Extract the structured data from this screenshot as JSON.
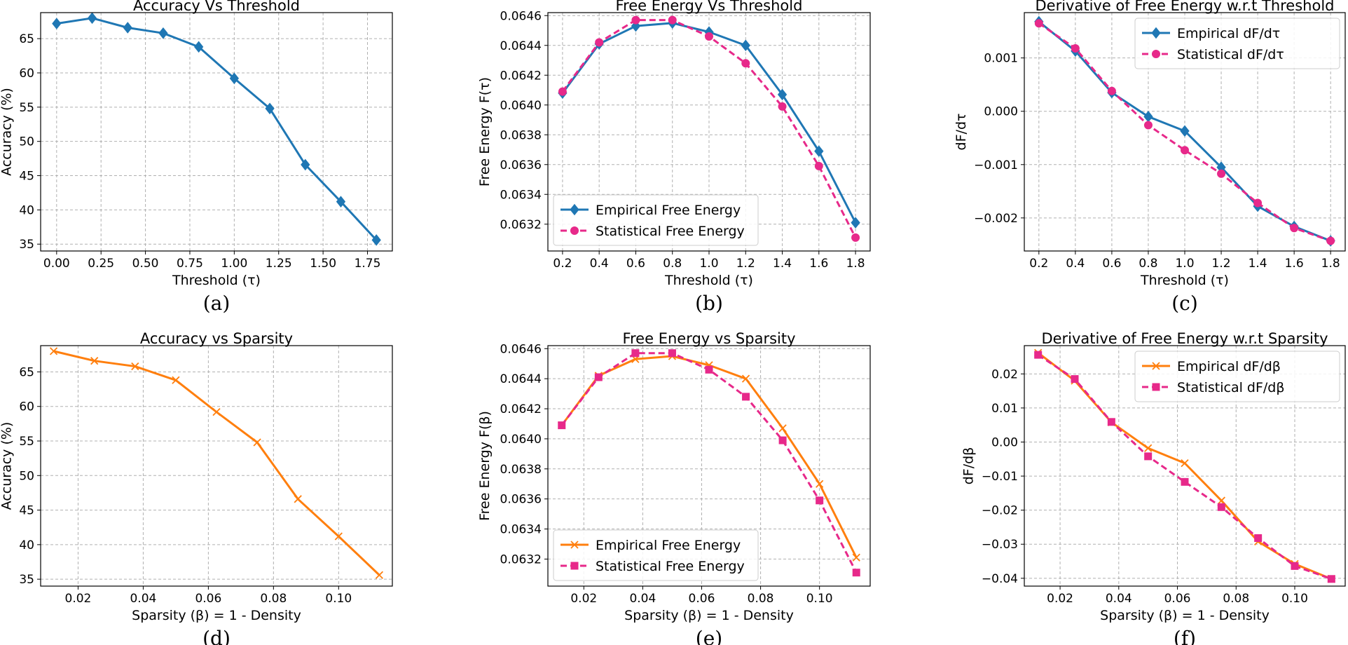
{
  "colors": {
    "blue": "#1f77b4",
    "pink": "#e7298a",
    "orange": "#ff7f0e"
  },
  "chart_data": [
    {
      "id": "a",
      "type": "line",
      "title": "Accuracy Vs Threshold",
      "xlabel": "Threshold (τ)",
      "ylabel": "Accuracy (%)",
      "caption": "(a)",
      "xlim": [
        -0.09,
        1.89
      ],
      "ylim": [
        34,
        68.8
      ],
      "xticks": [
        0.0,
        0.25,
        0.5,
        0.75,
        1.0,
        1.25,
        1.5,
        1.75
      ],
      "xtick_labels": [
        "0.00",
        "0.25",
        "0.50",
        "0.75",
        "1.00",
        "1.25",
        "1.50",
        "1.75"
      ],
      "yticks": [
        35,
        40,
        45,
        50,
        55,
        60,
        65
      ],
      "ytick_labels": [
        "35",
        "40",
        "45",
        "50",
        "55",
        "60",
        "65"
      ],
      "grid": true,
      "legend": null,
      "series": [
        {
          "name": "Accuracy",
          "color": "blue",
          "marker": "diamond",
          "dashed": false,
          "x": [
            0.0,
            0.2,
            0.4,
            0.6,
            0.8,
            1.0,
            1.2,
            1.4,
            1.6,
            1.8
          ],
          "y": [
            67.2,
            68.0,
            66.6,
            65.8,
            63.8,
            59.2,
            54.8,
            46.6,
            41.2,
            35.6
          ]
        }
      ]
    },
    {
      "id": "b",
      "type": "line",
      "title": "Free Energy Vs Threshold",
      "xlabel": "Threshold (τ)",
      "ylabel": "Free Energy F(τ)",
      "caption": "(b)",
      "xlim": [
        0.12,
        1.88
      ],
      "ylim": [
        0.06302,
        0.06462
      ],
      "xticks": [
        0.2,
        0.4,
        0.6,
        0.8,
        1.0,
        1.2,
        1.4,
        1.6,
        1.8
      ],
      "xtick_labels": [
        "0.2",
        "0.4",
        "0.6",
        "0.8",
        "1.0",
        "1.2",
        "1.4",
        "1.6",
        "1.8"
      ],
      "yticks": [
        0.0632,
        0.0634,
        0.0636,
        0.0638,
        0.064,
        0.0642,
        0.0644,
        0.0646
      ],
      "ytick_labels": [
        "0.0632",
        "0.0634",
        "0.0636",
        "0.0638",
        "0.0640",
        "0.0642",
        "0.0644",
        "0.0646"
      ],
      "grid": true,
      "legend": "lower-left",
      "series": [
        {
          "name": "Empirical Free Energy",
          "color": "blue",
          "marker": "diamond",
          "dashed": false,
          "x": [
            0.2,
            0.4,
            0.6,
            0.8,
            1.0,
            1.2,
            1.4,
            1.6,
            1.8
          ],
          "y": [
            0.06408,
            0.06441,
            0.06453,
            0.06455,
            0.06449,
            0.0644,
            0.06407,
            0.06369,
            0.06321
          ]
        },
        {
          "name": "Statistical Free Energy",
          "color": "pink",
          "marker": "circle",
          "dashed": true,
          "x": [
            0.2,
            0.4,
            0.6,
            0.8,
            1.0,
            1.2,
            1.4,
            1.6,
            1.8
          ],
          "y": [
            0.06409,
            0.06442,
            0.06457,
            0.06457,
            0.06446,
            0.06428,
            0.06399,
            0.06359,
            0.06311
          ]
        }
      ]
    },
    {
      "id": "c",
      "type": "line",
      "title": "Derivative of Free Energy w.r.t Threshold",
      "xlabel": "Threshold (τ)",
      "ylabel": "dF/dτ",
      "caption": "(c)",
      "xlim": [
        0.12,
        1.88
      ],
      "ylim": [
        -0.00262,
        0.00185
      ],
      "xticks": [
        0.2,
        0.4,
        0.6,
        0.8,
        1.0,
        1.2,
        1.4,
        1.6,
        1.8
      ],
      "xtick_labels": [
        "0.2",
        "0.4",
        "0.6",
        "0.8",
        "1.0",
        "1.2",
        "1.4",
        "1.6",
        "1.8"
      ],
      "yticks": [
        -0.002,
        -0.001,
        0.0,
        0.001
      ],
      "ytick_labels": [
        "−0.002",
        "−0.001",
        "0.000",
        "0.001"
      ],
      "grid": true,
      "legend": "upper-right",
      "series": [
        {
          "name": "Empirical dF/dτ",
          "color": "blue",
          "marker": "diamond",
          "dashed": false,
          "x": [
            0.2,
            0.4,
            0.6,
            0.8,
            1.0,
            1.2,
            1.4,
            1.6,
            1.8
          ],
          "y": [
            0.00168,
            0.00113,
            0.00035,
            -0.0001,
            -0.00037,
            -0.00105,
            -0.00178,
            -0.00216,
            -0.00243
          ]
        },
        {
          "name": "Statistical dF/dτ",
          "color": "pink",
          "marker": "circle",
          "dashed": true,
          "x": [
            0.2,
            0.4,
            0.6,
            0.8,
            1.0,
            1.2,
            1.4,
            1.6,
            1.8
          ],
          "y": [
            0.00165,
            0.00118,
            0.00038,
            -0.00026,
            -0.00073,
            -0.00117,
            -0.00172,
            -0.00219,
            -0.00243
          ]
        }
      ]
    },
    {
      "id": "d",
      "type": "line",
      "title": "Accuracy vs Sparsity",
      "xlabel": "Sparsity (β) = 1 - Density",
      "ylabel": "Accuracy (%)",
      "caption": "(d)",
      "xlim": [
        0.0085,
        0.1165
      ],
      "ylim": [
        34,
        68.8
      ],
      "xticks": [
        0.02,
        0.04,
        0.06,
        0.08,
        0.1
      ],
      "xtick_labels": [
        "0.02",
        "0.04",
        "0.06",
        "0.08",
        "0.10"
      ],
      "yticks": [
        35,
        40,
        45,
        50,
        55,
        60,
        65
      ],
      "ytick_labels": [
        "35",
        "40",
        "45",
        "50",
        "55",
        "60",
        "65"
      ],
      "grid": true,
      "legend": null,
      "series": [
        {
          "name": "Accuracy",
          "color": "orange",
          "marker": "x",
          "dashed": false,
          "x": [
            0.0125,
            0.025,
            0.0375,
            0.05,
            0.0625,
            0.075,
            0.0875,
            0.1,
            0.1125
          ],
          "y": [
            68.0,
            66.6,
            65.8,
            63.8,
            59.2,
            54.8,
            46.6,
            41.2,
            35.6
          ]
        }
      ]
    },
    {
      "id": "e",
      "type": "line",
      "title": "Free Energy vs Sparsity",
      "xlabel": "Sparsity (β) = 1 - Density",
      "ylabel": "Free Energy F(β)",
      "caption": "(e)",
      "xlim": [
        0.0078,
        0.1172
      ],
      "ylim": [
        0.06302,
        0.06462
      ],
      "xticks": [
        0.02,
        0.04,
        0.06,
        0.08,
        0.1
      ],
      "xtick_labels": [
        "0.02",
        "0.04",
        "0.06",
        "0.08",
        "0.10"
      ],
      "yticks": [
        0.0632,
        0.0634,
        0.0636,
        0.0638,
        0.064,
        0.0642,
        0.0644,
        0.0646
      ],
      "ytick_labels": [
        "0.0632",
        "0.0634",
        "0.0636",
        "0.0638",
        "0.0640",
        "0.0642",
        "0.0644",
        "0.0646"
      ],
      "grid": true,
      "legend": "lower-left",
      "series": [
        {
          "name": "Empirical Free Energy",
          "color": "orange",
          "marker": "x",
          "dashed": false,
          "x": [
            0.0125,
            0.025,
            0.0375,
            0.05,
            0.0625,
            0.075,
            0.0875,
            0.1,
            0.1125
          ],
          "y": [
            0.06409,
            0.06442,
            0.06453,
            0.06455,
            0.06449,
            0.0644,
            0.06407,
            0.0637,
            0.06321
          ]
        },
        {
          "name": "Statistical Free Energy",
          "color": "pink",
          "marker": "square",
          "dashed": true,
          "x": [
            0.0125,
            0.025,
            0.0375,
            0.05,
            0.0625,
            0.075,
            0.0875,
            0.1,
            0.1125
          ],
          "y": [
            0.06409,
            0.06441,
            0.06457,
            0.06457,
            0.06446,
            0.06428,
            0.06399,
            0.06359,
            0.06311
          ]
        }
      ]
    },
    {
      "id": "f",
      "type": "line",
      "title": "Derivative of Free Energy w.r.t Sparsity",
      "xlabel": "Sparsity (β) = 1 - Density",
      "ylabel": "dF/dβ",
      "caption": "(f)",
      "xlim": [
        0.0078,
        0.1172
      ],
      "ylim": [
        -0.0423,
        0.0283
      ],
      "xticks": [
        0.02,
        0.04,
        0.06,
        0.08,
        0.1
      ],
      "xtick_labels": [
        "0.02",
        "0.04",
        "0.06",
        "0.08",
        "0.10"
      ],
      "yticks": [
        -0.04,
        -0.03,
        -0.02,
        -0.01,
        0.0,
        0.01,
        0.02
      ],
      "ytick_labels": [
        "−0.04",
        "−0.03",
        "−0.02",
        "−0.01",
        "0.00",
        "0.01",
        "0.02"
      ],
      "grid": true,
      "legend": "upper-right",
      "series": [
        {
          "name": "Empirical dF/dβ",
          "color": "orange",
          "marker": "x",
          "dashed": false,
          "x": [
            0.0125,
            0.025,
            0.0375,
            0.05,
            0.0625,
            0.075,
            0.0875,
            0.1,
            0.1125
          ],
          "y": [
            0.0262,
            0.018,
            0.0058,
            -0.0018,
            -0.0062,
            -0.0172,
            -0.0292,
            -0.0358,
            -0.0402
          ]
        },
        {
          "name": "Statistical dF/dβ",
          "color": "pink",
          "marker": "square",
          "dashed": true,
          "x": [
            0.0125,
            0.025,
            0.0375,
            0.05,
            0.0625,
            0.075,
            0.0875,
            0.1,
            0.1125
          ],
          "y": [
            0.0256,
            0.0185,
            0.0059,
            -0.0042,
            -0.0117,
            -0.0191,
            -0.0282,
            -0.0364,
            -0.0402
          ]
        }
      ]
    }
  ]
}
